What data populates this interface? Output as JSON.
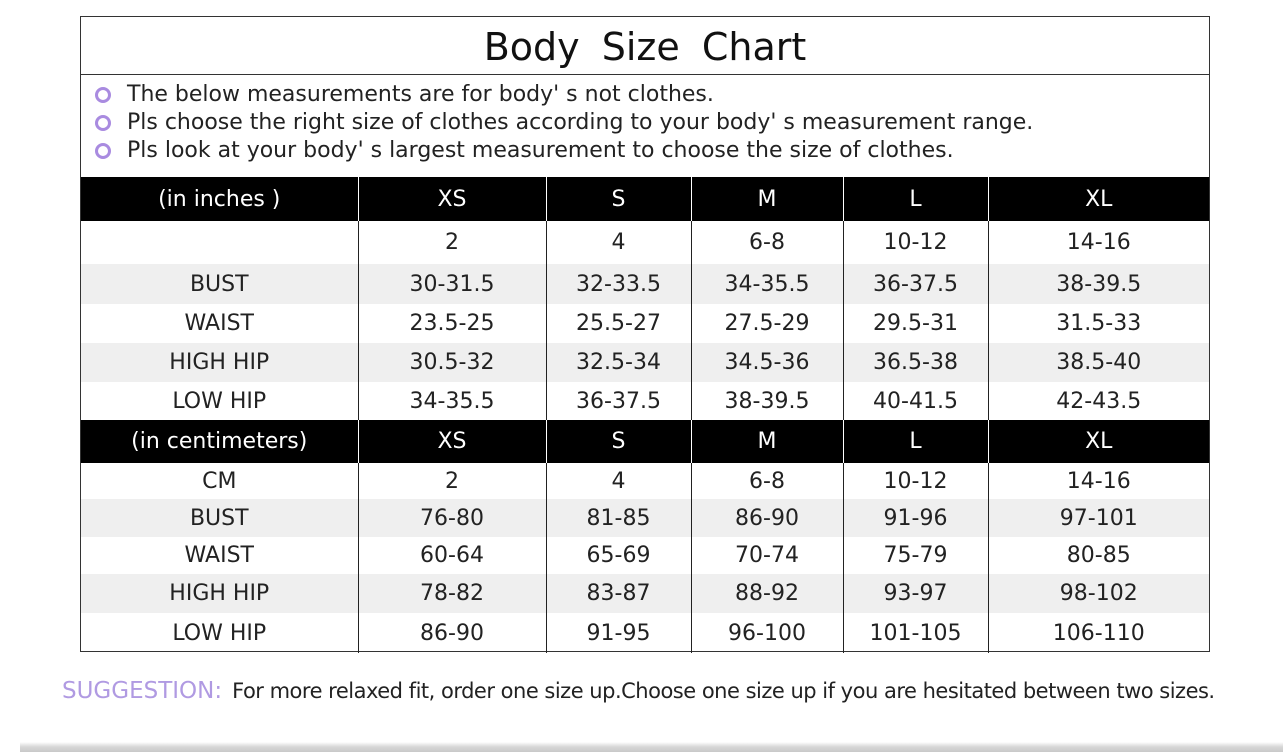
{
  "title": "Body  Size  Chart",
  "notes": [
    "The below measurements are for  body' s not clothes.",
    "Pls choose the right size of clothes according to your body' s  measurement range.",
    "Pls look  at your body' s  largest measurement to choose the size of clothes."
  ],
  "accent_color": "#a98be0",
  "inches": {
    "header": [
      "(in  inches )",
      "XS",
      "S",
      "M",
      "L",
      "XL"
    ],
    "rows": [
      [
        "",
        "2",
        "4",
        "6-8",
        "10-12",
        "14-16"
      ],
      [
        "BUST",
        "30-31.5",
        "32-33.5",
        "34-35.5",
        "36-37.5",
        "38-39.5"
      ],
      [
        "WAIST",
        "23.5-25",
        "25.5-27",
        "27.5-29",
        "29.5-31",
        "31.5-33"
      ],
      [
        "HIGH HIP",
        "30.5-32",
        "32.5-34",
        "34.5-36",
        "36.5-38",
        "38.5-40"
      ],
      [
        "LOW HIP",
        "34-35.5",
        "36-37.5",
        "38-39.5",
        "40-41.5",
        "42-43.5"
      ]
    ]
  },
  "centimeters": {
    "header": [
      "(in centimeters)",
      "XS",
      "S",
      "M",
      "L",
      "XL"
    ],
    "rows": [
      [
        "CM",
        "2",
        "4",
        "6-8",
        "10-12",
        "14-16"
      ],
      [
        "BUST",
        "76-80",
        "81-85",
        "86-90",
        "91-96",
        "97-101"
      ],
      [
        "WAIST",
        "60-64",
        "65-69",
        "70-74",
        "75-79",
        "80-85"
      ],
      [
        "HIGH HIP",
        "78-82",
        "83-87",
        "88-92",
        "93-97",
        "98-102"
      ],
      [
        "LOW HIP",
        "86-90",
        "91-95",
        "96-100",
        "101-105",
        "106-110"
      ]
    ]
  },
  "suggestion": {
    "label": "SUGGESTION:",
    "text": "For more relaxed fit, order one size up.Choose one size up if you are hesitated between two sizes."
  }
}
